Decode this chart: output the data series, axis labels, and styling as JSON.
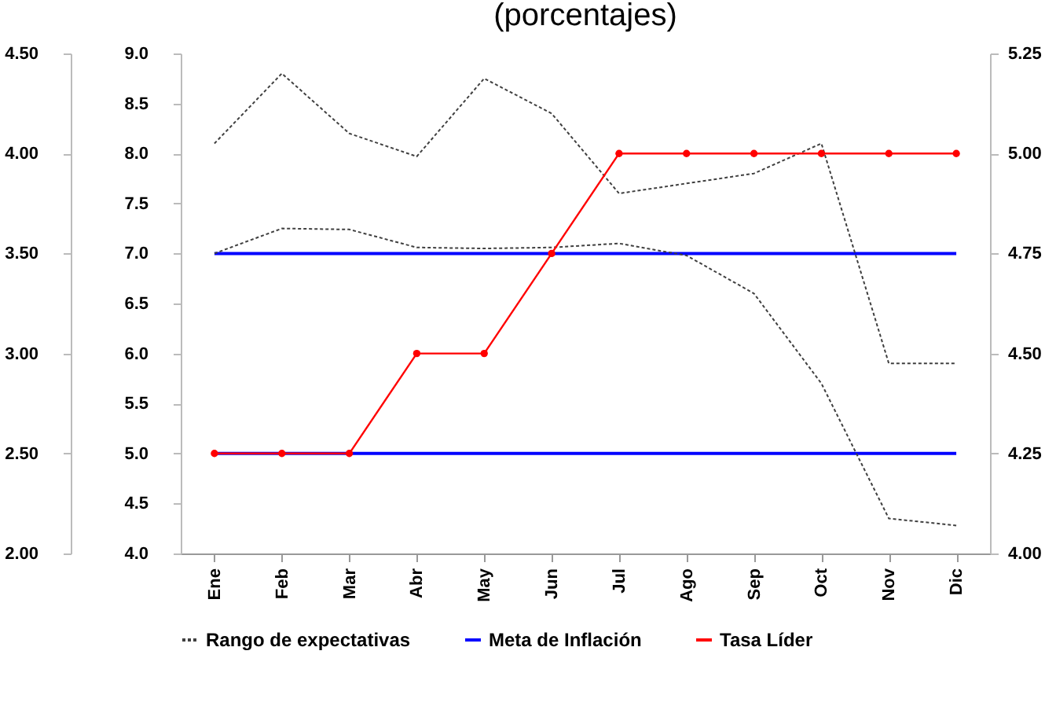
{
  "chart_data": {
    "type": "line",
    "title": "(porcentajes)",
    "categories": [
      "Ene",
      "Feb",
      "Mar",
      "Abr",
      "May",
      "Jun",
      "Jul",
      "Ago",
      "Sep",
      "Oct",
      "Nov",
      "Dic"
    ],
    "series": [
      {
        "name": "Rango de expectativas",
        "color": "#404040",
        "line_style": "dashed",
        "values": [
          8.1,
          8.8,
          8.2,
          7.97,
          8.75,
          8.4,
          7.6,
          7.7,
          7.8,
          8.1,
          5.9,
          5.9
        ]
      },
      {
        "color": "#404040",
        "line_style": "dashed",
        "values": [
          7.0,
          7.25,
          7.24,
          7.06,
          7.05,
          7.06,
          7.1,
          6.98,
          6.6,
          5.7,
          4.35,
          4.28
        ]
      },
      {
        "name": "Meta de Inflación",
        "color": "#0000ff",
        "values": [
          7,
          7,
          7,
          7,
          7,
          7,
          7,
          7,
          7,
          7,
          7,
          7
        ]
      },
      {
        "color": "#0000ff",
        "values": [
          5,
          5,
          5,
          5,
          5,
          5,
          5,
          5,
          5,
          5,
          5,
          5
        ]
      },
      {
        "name": "Tasa Líder",
        "color": "#ff0000",
        "axis": "y2",
        "marker": "circle",
        "values": [
          4.25,
          4.25,
          4.25,
          4.5,
          4.5,
          4.75,
          5,
          5,
          5,
          5,
          5,
          5
        ]
      }
    ],
    "ylim": [
      4,
      9
    ],
    "yticks": [
      {
        "value": 4,
        "label": "4.0"
      },
      4.5,
      {
        "value": 5,
        "label": "5.0"
      },
      5.5,
      {
        "value": 6,
        "label": "6.0"
      },
      6.5,
      {
        "value": 7,
        "label": "7.0"
      },
      7.5,
      {
        "value": 8,
        "label": "8.0"
      },
      8.5,
      {
        "value": 9,
        "label": "9.0"
      }
    ],
    "y2lim": [
      4,
      5.25
    ],
    "y2ticks": [
      {
        "value": 4,
        "label": "4.00"
      },
      {
        "value": 4.25,
        "label": "4.25"
      },
      {
        "value": 4.5,
        "label": "4.50"
      },
      {
        "value": 4.75,
        "label": "4.75"
      },
      {
        "value": 5,
        "label": "5.00"
      },
      {
        "value": 5.25,
        "label": "5.25"
      }
    ],
    "y3lim": [
      2,
      4.5
    ],
    "y3ticks": [
      {
        "value": 2,
        "label": "2.00"
      },
      {
        "value": 2.5,
        "label": "2.50"
      },
      {
        "value": 3,
        "label": "3.00"
      },
      {
        "value": 3.5,
        "label": "3.50"
      },
      {
        "value": 4,
        "label": "4.00"
      },
      {
        "value": 4.5,
        "label": "4.50"
      }
    ],
    "legend": "bottom"
  }
}
